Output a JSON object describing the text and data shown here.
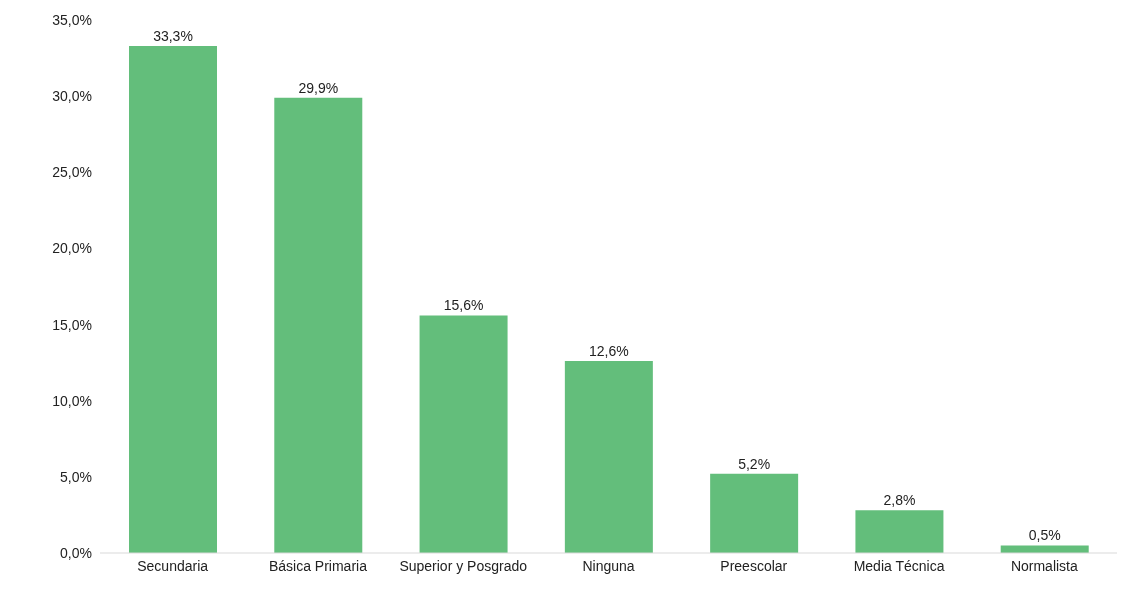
{
  "chart_data": {
    "type": "bar",
    "categories": [
      "Secundaria",
      "Básica Primaria",
      "Superior y Posgrado",
      "Ninguna",
      "Preescolar",
      "Media Técnica",
      "Normalista"
    ],
    "values": [
      33.3,
      29.9,
      15.6,
      12.6,
      5.2,
      2.8,
      0.5
    ],
    "value_labels": [
      "33,3%",
      "29,9%",
      "15,6%",
      "12,6%",
      "5,2%",
      "2,8%",
      "0,5%"
    ],
    "color": "#63be7b",
    "ylim": [
      0,
      35
    ],
    "yticks": [
      {
        "value": 0,
        "label": "0,0%"
      },
      {
        "value": 5,
        "label": "5,0%"
      },
      {
        "value": 10,
        "label": "10,0%"
      },
      {
        "value": 15,
        "label": "15,0%"
      },
      {
        "value": 20,
        "label": "20,0%"
      },
      {
        "value": 25,
        "label": "25,0%"
      },
      {
        "value": 30,
        "label": "30,0%"
      },
      {
        "value": 35,
        "label": "35,0%"
      }
    ],
    "grid": false
  }
}
